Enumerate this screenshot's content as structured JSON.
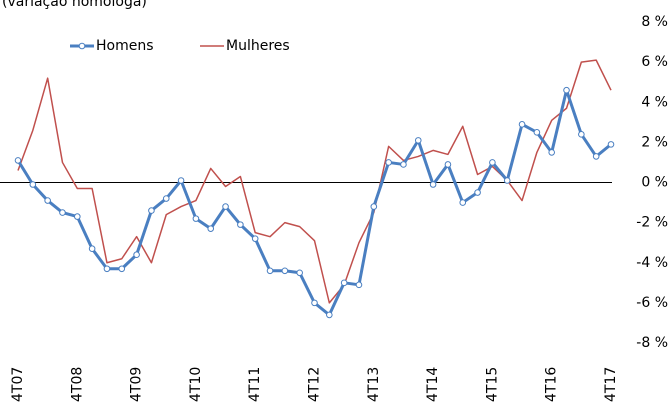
{
  "chart_data": {
    "type": "line",
    "subtitle": "(variação homóloga)",
    "categories": [
      "4T07",
      null,
      null,
      null,
      "4T08",
      null,
      null,
      null,
      "4T09",
      null,
      null,
      null,
      "4T10",
      null,
      null,
      null,
      "4T11",
      null,
      null,
      null,
      "4T12",
      null,
      null,
      null,
      "4T13",
      null,
      null,
      null,
      "4T14",
      null,
      null,
      null,
      "4T15",
      null,
      null,
      null,
      "4T16",
      null,
      null,
      null,
      "4T17"
    ],
    "series": [
      {
        "name": "Homens",
        "color": "#4a7fc1",
        "markers": true,
        "values": [
          1.1,
          -0.1,
          -0.9,
          -1.5,
          -1.7,
          -3.3,
          -4.3,
          -4.3,
          -3.6,
          -1.4,
          -0.8,
          0.1,
          -1.8,
          -2.3,
          -1.2,
          -2.1,
          -2.8,
          -4.4,
          -4.4,
          -4.5,
          -6.0,
          -6.6,
          -5.0,
          -5.1,
          -1.2,
          1.0,
          0.9,
          2.1,
          -0.1,
          0.9,
          -1.0,
          -0.5,
          1.0,
          0.1,
          2.9,
          2.5,
          1.5,
          4.6,
          2.4,
          1.3,
          1.9
        ]
      },
      {
        "name": "Mulheres",
        "color": "#c0504d",
        "markers": false,
        "values": [
          0.6,
          2.6,
          5.2,
          1.0,
          -0.3,
          -0.3,
          -4.0,
          -3.8,
          -2.7,
          -4.0,
          -1.6,
          -1.2,
          -0.9,
          0.7,
          -0.2,
          0.3,
          -2.5,
          -2.7,
          -2.0,
          -2.2,
          -2.9,
          -6.0,
          -5.1,
          -3.0,
          -1.5,
          1.8,
          1.1,
          1.3,
          1.6,
          1.4,
          2.8,
          0.4,
          0.8,
          0.1,
          -0.9,
          1.5,
          3.1,
          3.7,
          6.0,
          6.1,
          4.6
        ]
      }
    ],
    "ylim": [
      -8,
      8
    ],
    "yticks": [
      {
        "value": 8,
        "label": "8 %"
      },
      {
        "value": 6,
        "label": "6 %"
      },
      {
        "value": 4,
        "label": "4 %"
      },
      {
        "value": 2,
        "label": "2 %"
      },
      {
        "value": 0,
        "label": "0 %"
      },
      {
        "value": -2,
        "label": "-2 %"
      },
      {
        "value": -4,
        "label": "-4 %"
      },
      {
        "value": -6,
        "label": "-6 %"
      },
      {
        "value": -8,
        "label": "-8 %"
      }
    ],
    "zero_line": true,
    "grid": false
  }
}
